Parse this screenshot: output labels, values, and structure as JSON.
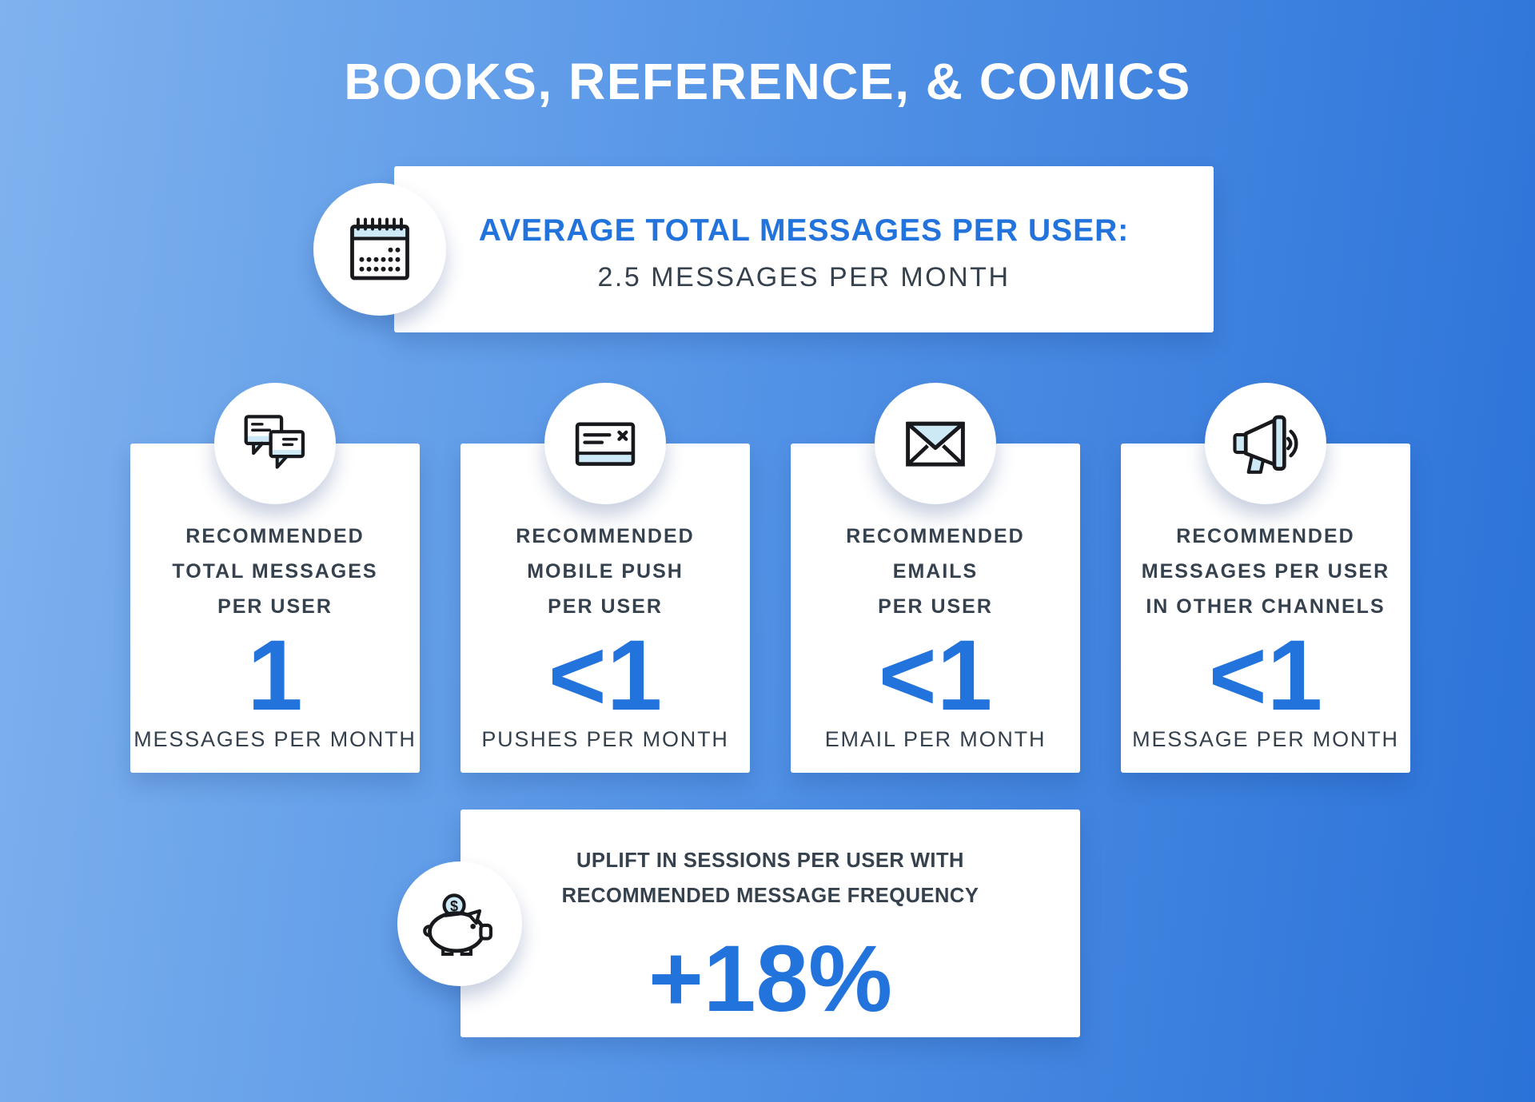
{
  "page": {
    "title": "BOOKS, REFERENCE, & COMICS"
  },
  "summary_card": {
    "icon": "calendar-icon",
    "heading": "AVERAGE TOTAL MESSAGES PER USER:",
    "value_text": "2.5 MESSAGES PER MONTH"
  },
  "stat_cards": [
    {
      "icon": "chat-bubbles-icon",
      "heading_lines": [
        "RECOMMENDED",
        "TOTAL MESSAGES",
        "PER USER"
      ],
      "value": "1",
      "caption": "MESSAGES PER MONTH"
    },
    {
      "icon": "mobile-push-icon",
      "heading_lines": [
        "RECOMMENDED",
        "MOBILE PUSH",
        "PER USER"
      ],
      "value": "<1",
      "caption": "PUSHES PER MONTH"
    },
    {
      "icon": "email-icon",
      "heading_lines": [
        "RECOMMENDED",
        "EMAILS",
        "PER USER"
      ],
      "value": "<1",
      "caption": "EMAIL PER MONTH"
    },
    {
      "icon": "megaphone-icon",
      "heading_lines": [
        "RECOMMENDED",
        "MESSAGES PER USER",
        "IN OTHER CHANNELS"
      ],
      "value": "<1",
      "caption": "MESSAGE PER MONTH"
    }
  ],
  "uplift_card": {
    "icon": "piggy-bank-icon",
    "heading_lines": [
      "UPLIFT IN SESSIONS PER USER WITH",
      "RECOMMENDED MESSAGE FREQUENCY"
    ],
    "value": "+18%"
  },
  "colors": {
    "accent_blue": "#2273DC",
    "dark_text": "#36414E",
    "icon_light_fill": "#CEE9F6",
    "bg_gradient_left": "#7FB2EE",
    "bg_gradient_right": "#2B72D8",
    "card_bg": "#FFFFFF"
  }
}
